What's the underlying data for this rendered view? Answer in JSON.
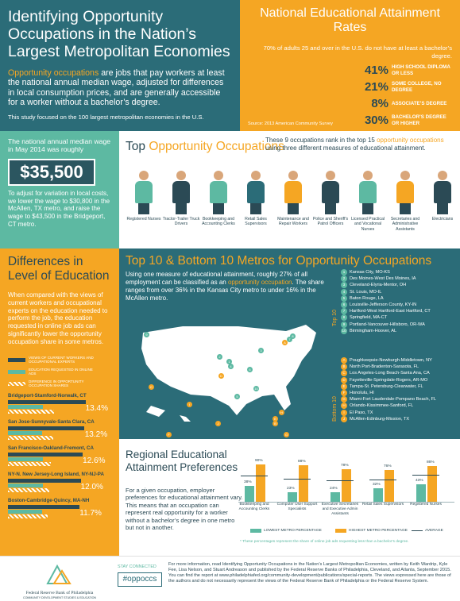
{
  "header": {
    "title_line1": "Identifying Opportunity",
    "title_line2": "Occupations in the Nation’s",
    "title_line3": "Largest Metropolitan Economies",
    "intro_highlight": "Opportunity occupations",
    "intro_rest": " are jobs that pay workers at least the national annual median wage, adjusted for differences in local consumption prices, and are generally accessible for a worker without a bachelor’s degree.",
    "study": "This study focused on the 100 largest metropolitan economies in the U.S."
  },
  "attainment": {
    "title": "National Educational Attainment Rates",
    "note": "70% of adults 25 and over in the U.S. do not have at least a bachelor’s degree.",
    "rates": [
      {
        "pct": "41%",
        "label": "HIGH SCHOOL DIPLOMA OR LESS"
      },
      {
        "pct": "21%",
        "label": "SOME COLLEGE, NO DEGREE"
      },
      {
        "pct": "8%",
        "label": "ASSOCIATE’S DEGREE"
      },
      {
        "pct": "30%",
        "label": "BACHELOR’S DEGREE OR HIGHER"
      }
    ],
    "source": "Source: 2013 American Community Survey"
  },
  "wage": {
    "top": "The national annual median wage in May 2014 was roughly",
    "amount": "$35,500",
    "bottom": "To adjust for variation in local costs, we lower the wage to $30,800 in the McAllen, TX metro, and raise the wage to $43,500 in the Bridgeport, CT metro."
  },
  "occupations": {
    "title_a": "Top ",
    "title_b": "Opportunity Occupations",
    "desc_a": "These 9 occupations rank in the top 15 ",
    "desc_b": "opportunity occupations",
    "desc_c": " using three different measures of educational attainment.",
    "items": [
      {
        "label": "Registered Nurses",
        "color": "#5db9a2"
      },
      {
        "label": "Tractor-Trailer Truck Drivers",
        "color": "#2b4a55"
      },
      {
        "label": "Bookkeeping and Accounting Clerks",
        "color": "#5db9a2"
      },
      {
        "label": "Retail Sales Supervisors",
        "color": "#2b6c78"
      },
      {
        "label": "Maintenance and Repair Workers",
        "color": "#f5a623"
      },
      {
        "label": "Police and Sheriff’s Patrol Officers",
        "color": "#2b4a55"
      },
      {
        "label": "Licensed Practical and Vocational Nurses",
        "color": "#5db9a2"
      },
      {
        "label": "Secretaries and Administrative Assistants",
        "color": "#f5a623"
      },
      {
        "label": "Electricians",
        "color": "#2b4a55"
      }
    ]
  },
  "differences": {
    "title_line1": "Differences in",
    "title_line2": "Level of Education",
    "text": "When compared with the views of current workers and occupational experts on the education needed to perform the job, the education requested in online job ads can significantly lower the opportunity occupation share in some metros.",
    "legend": [
      "VIEWS OF CURRENT WORKERS AND OCCUPATIONAL EXPERTS",
      "EDUCATION REQUESTED IN ONLINE ADS",
      "DIFFERENCE IN OPPORTUNITY OCCUPATION SHARES"
    ],
    "metros": [
      {
        "name": "Bridgeport-Stamford-Norwalk, CT",
        "value": "13.4%",
        "diff": 13.4
      },
      {
        "name": "San Jose-Sunnyvale-Santa Clara, CA",
        "value": "13.2%",
        "diff": 13.2
      },
      {
        "name": "San Francisco-Oakland-Fremont, CA",
        "value": "12.6%",
        "diff": 12.6
      },
      {
        "name": "NY-N. New Jersey-Long Island, NY-NJ-PA",
        "value": "12.0%",
        "diff": 12.0
      },
      {
        "name": "Boston-Cambridge-Quincy, MA-NH",
        "value": "11.7%",
        "diff": 11.7
      }
    ]
  },
  "metros": {
    "title_a": "Top 10 & Bottom 10 Metros for ",
    "title_b": "Opportunity Occupations",
    "desc_a": "Using one measure of educational attainment, roughly 27% of all employment can be classified as an ",
    "desc_b": "opportunity occupation",
    "desc_c": ". The share ranges from over 36% in the Kansas City metro to under 16% in the McAllen metro.",
    "top_label": "Top 10",
    "bottom_label": "Bottom 10",
    "top": [
      "Kansas City, MO-KS",
      "Des Moines-West Des Moines, IA",
      "Cleveland-Elyria-Mentor, OH",
      "St. Louis, MO-IL",
      "Baton Rouge, LA",
      "Louisville-Jefferson County, KY-IN",
      "Hartford-West Hartford-East Hartford, CT",
      "Springfield, MA-CT",
      "Portland-Vancouver-Hillsboro, OR-WA",
      "Birmingham-Hoover, AL"
    ],
    "bottom": [
      "Poughkeepsie-Newburgh-Middletown, NY",
      "North Port-Bradenton-Sarasota, FL",
      "Los Angeles-Long Beach-Santa Ana, CA",
      "Fayetteville-Springdale-Rogers, AR-MO",
      "Tampa-St. Petersburg-Clearwater, FL",
      "Honolulu, HI",
      "Miami-Fort Lauderdale-Pompano Beach, FL",
      "Orlando-Kissimmee-Sanford, FL",
      "El Paso, TX",
      "McAllen-Edinburg-Mission, TX"
    ],
    "top_markers": [
      "1",
      "2",
      "3",
      "4",
      "5",
      "6",
      "7",
      "8",
      "9",
      "10"
    ],
    "bottom_markers": [
      "A",
      "B",
      "C",
      "D",
      "E",
      "F",
      "G",
      "H",
      "I",
      "J"
    ]
  },
  "regional": {
    "title_line1": "Regional Educational",
    "title_line2": "Attainment Preferences",
    "text": "For a given occupation, employer preferences for educational attainment vary. This means that an occupation can represent real opportunity for a worker without a bachelor’s degree in one metro but not in another.",
    "legend_low": "LOWEST METRO PERCENTAGE",
    "legend_high": "HIGHEST METRO PERCENTAGE",
    "legend_avg": "AVERAGE",
    "footnote": "* These percentages represent the share of online job ads requesting less than a bachelor’s degree.",
    "chart_data": {
      "type": "bar",
      "categories": [
        "Bookkeeping and Accounting Clerks",
        "Computer User Support Specialists",
        "Executive Secretaries and Executive Admin Assistants",
        "Retail Sales Supervisors",
        "Registered Nurses"
      ],
      "series": [
        {
          "name": "LOWEST METRO PERCENTAGE",
          "values": [
            38,
            23,
            24,
            32,
            43
          ],
          "labels": [
            "38%",
            "23%",
            "24%",
            "32%",
            "43%"
          ]
        },
        {
          "name": "HIGHEST METRO PERCENTAGE",
          "values": [
            90,
            88,
            78,
            76,
            86
          ],
          "labels": [
            "90%",
            "88%",
            "78%",
            "76%",
            "86%"
          ]
        }
      ],
      "ylim": [
        0,
        100
      ]
    }
  },
  "footer": {
    "org": "Federal Reserve Bank of Philadelphia",
    "dept": "COMMUNITY DEVELOPMENT STUDIES & EDUCATION",
    "stay": "STAY CONNECTED",
    "hashtag": "#oppoccs",
    "info": "For more information, read Identifying Opportunity Occupations in the Nation’s Largest Metropolitan Economies, written by Keith Wardrip, Kyle Fee, Lisa Nelson, and Stuart Andreason and published by the Federal Reserve Banks of Philadelphia, Cleveland, and Atlanta, September 2015. You can find the report at www.philadelphiafed.org/community-development/publications/special-reports. The views expressed here are those of the authors and do not necessarily represent the views of the Federal Reserve Bank of Philadelphia or the Federal Reserve System."
  },
  "colors": {
    "teal": "#2b6c78",
    "orange": "#f5a623",
    "mint": "#5db9a2",
    "navy": "#2b4a55"
  }
}
